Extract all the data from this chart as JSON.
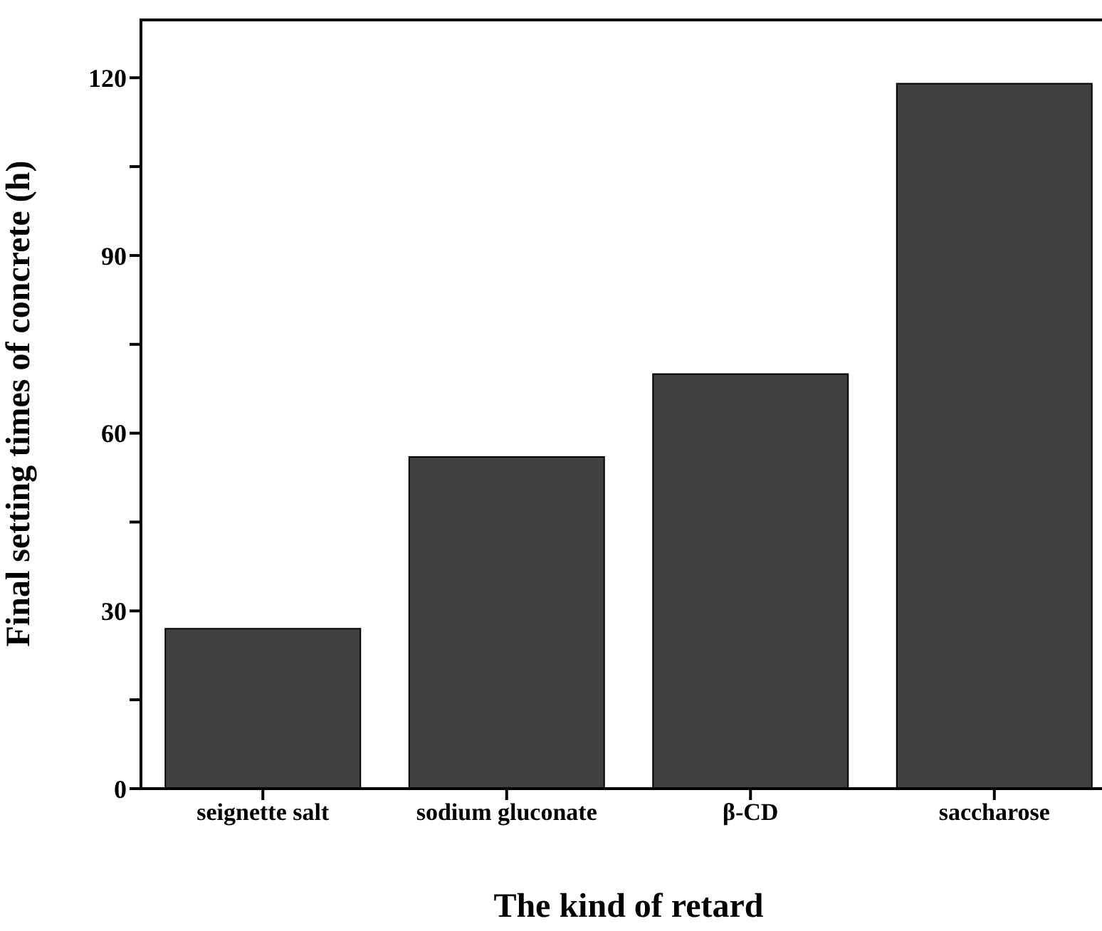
{
  "chart_data": {
    "type": "bar",
    "xlabel": "The kind of retard",
    "ylabel": "Final setting times of concrete (h)",
    "categories": [
      "seignette salt",
      "sodium gluconate",
      "β-CD",
      "saccharose"
    ],
    "values": [
      27,
      56,
      70,
      119
    ],
    "color": "#404040",
    "ylim": [
      0,
      130
    ],
    "yticks": [
      0,
      {
        "value": 15,
        "label": null
      },
      30,
      {
        "value": 45,
        "label": null
      },
      60,
      {
        "value": 75,
        "label": null
      },
      90,
      {
        "value": 105,
        "label": null
      },
      120
    ],
    "grid": false
  }
}
